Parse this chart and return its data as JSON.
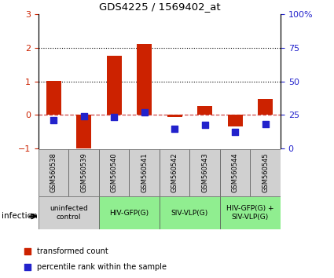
{
  "title": "GDS4225 / 1569402_at",
  "samples": [
    "GSM560538",
    "GSM560539",
    "GSM560540",
    "GSM560541",
    "GSM560542",
    "GSM560543",
    "GSM560544",
    "GSM560545"
  ],
  "red_values": [
    1.02,
    -1.0,
    1.75,
    2.1,
    -0.05,
    0.27,
    -0.35,
    0.47
  ],
  "blue_values_left": [
    -0.15,
    -0.04,
    -0.07,
    0.07,
    -0.4,
    -0.3,
    -0.5,
    -0.28
  ],
  "ylim": [
    -1.0,
    3.0
  ],
  "yticks_left": [
    -1,
    0,
    1,
    2,
    3
  ],
  "yticks_right": [
    0,
    25,
    50,
    75,
    100
  ],
  "right_ylim": [
    0,
    100
  ],
  "hlines": [
    1.0,
    2.0
  ],
  "bar_color": "#cc2200",
  "dot_color": "#2222cc",
  "zero_line_color": "#cc4444",
  "infection_label": "infection",
  "legend_red": "transformed count",
  "legend_blue": "percentile rank within the sample",
  "bar_width": 0.5,
  "dot_size": 30,
  "groups": [
    {
      "label": "uninfected\ncontrol",
      "start": 0,
      "end": 1,
      "color": "#d0d0d0"
    },
    {
      "label": "HIV-GFP(G)",
      "start": 2,
      "end": 3,
      "color": "#90ee90"
    },
    {
      "label": "SIV-VLP(G)",
      "start": 4,
      "end": 5,
      "color": "#90ee90"
    },
    {
      "label": "HIV-GFP(G) +\nSIV-VLP(G)",
      "start": 6,
      "end": 7,
      "color": "#90ee90"
    }
  ]
}
